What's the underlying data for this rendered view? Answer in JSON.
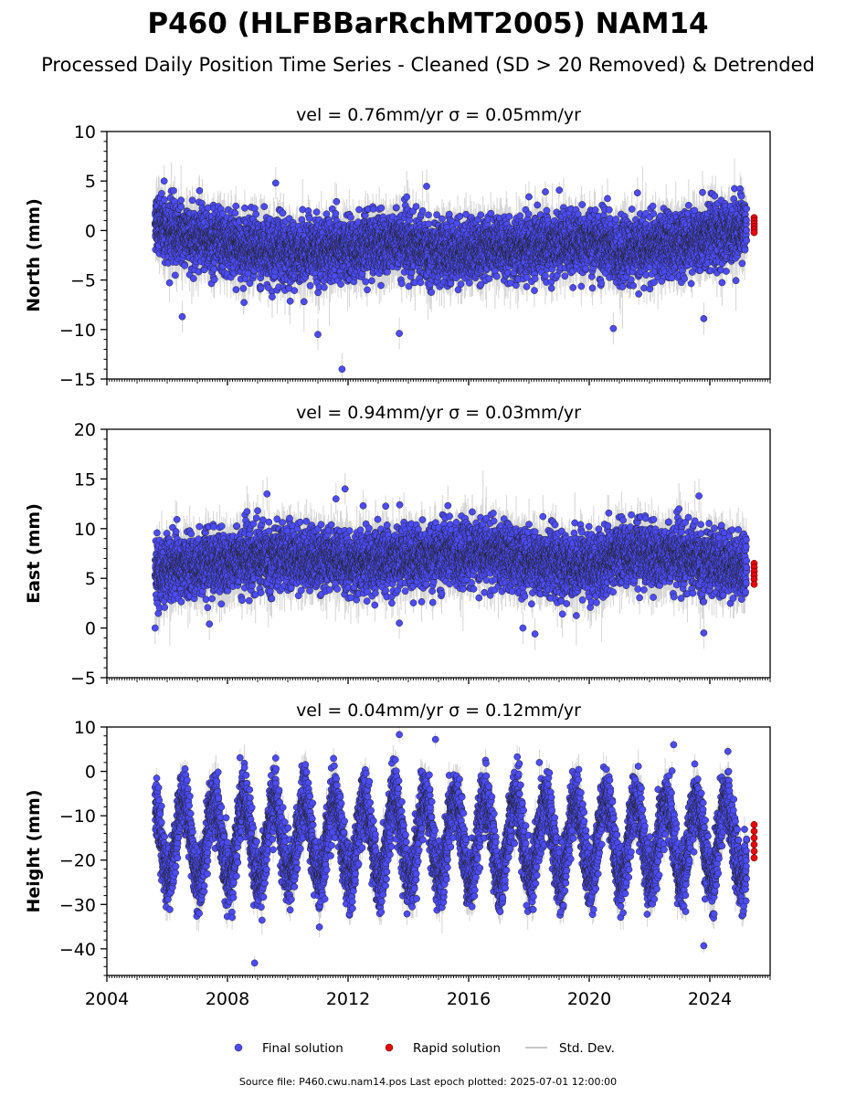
{
  "title": "P460 (HLFBBarRchMT2005) NAM14",
  "subtitle": "Processed Daily Position Time Series - Cleaned (SD > 20 Removed) & Detrended",
  "footer": "Source file: P460.cwu.nam14.pos  Last epoch plotted: 2025-07-01 12:00:00",
  "colors": {
    "final": "#4b4bff",
    "rapid": "#ee0000",
    "stddev": "#b4b4b4",
    "edge": "#222222"
  },
  "chart_data": [
    {
      "type": "scatter",
      "panel": "north",
      "title": "vel = 0.76mm/yr   σ = 0.05mm/yr",
      "ylabel": "North (mm)",
      "xlim": [
        2004.0,
        2026.0
      ],
      "ylim": [
        -15,
        10
      ],
      "yticks": [
        -15,
        -10,
        -5,
        0,
        5,
        10
      ],
      "ytick_labels": [
        "−15",
        "−10",
        "−5",
        "0",
        "5",
        "10"
      ],
      "trend": [
        [
          2005.6,
          1.2
        ],
        [
          2006.0,
          0.0
        ],
        [
          2007.5,
          -1.0
        ],
        [
          2009.5,
          -2.2
        ],
        [
          2012.0,
          -2.0
        ],
        [
          2013.5,
          -1.0
        ],
        [
          2015.0,
          -2.3
        ],
        [
          2018.0,
          -1.6
        ],
        [
          2020.0,
          -1.0
        ],
        [
          2021.0,
          -2.2
        ],
        [
          2023.0,
          -1.2
        ],
        [
          2025.3,
          0.3
        ]
      ],
      "spread": 1.5,
      "outliers": [
        [
          2009.6,
          4.8
        ],
        [
          2011.8,
          -14.0
        ],
        [
          2011.0,
          -10.5
        ],
        [
          2013.7,
          -10.4
        ],
        [
          2020.8,
          -9.9
        ],
        [
          2023.8,
          -8.9
        ],
        [
          2006.5,
          -8.7
        ],
        [
          2018.0,
          3.4
        ],
        [
          2021.6,
          3.8
        ],
        [
          2005.9,
          5.0
        ]
      ],
      "final_series": {
        "x_start": 2005.6,
        "x_end": 2025.22
      },
      "rapid_series": {
        "x": 2025.47,
        "values": [
          1.3,
          1.0,
          0.7,
          0.4,
          0.1,
          -0.2
        ]
      }
    },
    {
      "type": "scatter",
      "panel": "east",
      "title": "vel = 0.94mm/yr   σ = 0.03mm/yr",
      "ylabel": "East (mm)",
      "xlim": [
        2004.0,
        2026.0
      ],
      "ylim": [
        -5,
        20
      ],
      "yticks": [
        -5,
        0,
        5,
        10,
        15,
        20
      ],
      "ytick_labels": [
        "−5",
        "0",
        "5",
        "10",
        "15",
        "20"
      ],
      "trend": [
        [
          2005.6,
          5.6
        ],
        [
          2008.0,
          6.8
        ],
        [
          2010.0,
          7.2
        ],
        [
          2012.0,
          6.6
        ],
        [
          2014.0,
          7.1
        ],
        [
          2016.5,
          7.6
        ],
        [
          2019.0,
          6.4
        ],
        [
          2020.5,
          6.2
        ],
        [
          2021.0,
          7.6
        ],
        [
          2023.0,
          7.2
        ],
        [
          2025.3,
          6.0
        ]
      ],
      "spread": 1.5,
      "outliers": [
        [
          2011.9,
          14.0
        ],
        [
          2011.6,
          13.0
        ],
        [
          2012.5,
          12.3
        ],
        [
          2009.0,
          11.8
        ],
        [
          2005.6,
          0.0
        ],
        [
          2007.4,
          0.4
        ],
        [
          2013.7,
          0.5
        ],
        [
          2018.2,
          -0.6
        ],
        [
          2017.8,
          0.0
        ],
        [
          2023.8,
          -0.5
        ]
      ],
      "final_series": {
        "x_start": 2005.6,
        "x_end": 2025.22
      },
      "rapid_series": {
        "x": 2025.47,
        "values": [
          6.5,
          6.1,
          5.7,
          5.3,
          4.9,
          4.4
        ]
      }
    },
    {
      "type": "scatter",
      "panel": "height",
      "title": "vel = 0.04mm/yr   σ = 0.12mm/yr",
      "ylabel": "Height (mm)",
      "xlim": [
        2004.0,
        2026.0
      ],
      "ylim": [
        -46,
        10
      ],
      "yticks": [
        -40,
        -30,
        -20,
        -10,
        0,
        10
      ],
      "ytick_labels": [
        "−40",
        "−30",
        "−20",
        "−10",
        "0",
        "10"
      ],
      "trend": [
        [
          2005.6,
          -15.5
        ],
        [
          2025.3,
          -15.5
        ]
      ],
      "seasonal_amplitude": 9,
      "spread": 3.5,
      "outliers": [
        [
          2008.9,
          -43.2
        ],
        [
          2013.7,
          8.3
        ],
        [
          2014.9,
          7.2
        ],
        [
          2023.8,
          -39.3
        ],
        [
          2022.8,
          6.0
        ],
        [
          2024.6,
          4.5
        ],
        [
          2009.6,
          3.0
        ]
      ],
      "final_series": {
        "x_start": 2005.6,
        "x_end": 2025.22
      },
      "rapid_series": {
        "x": 2025.47,
        "values": [
          -12,
          -13.5,
          -15,
          -16.5,
          -18,
          -19.5
        ]
      }
    }
  ],
  "xaxis": {
    "major_ticks": [
      2004,
      2008,
      2012,
      2016,
      2020,
      2024
    ],
    "tick_labels": [
      "2004",
      "2008",
      "2012",
      "2016",
      "2020",
      "2024"
    ]
  },
  "legend": {
    "items": [
      {
        "label": "Final solution",
        "kind": "final"
      },
      {
        "label": "Rapid solution",
        "kind": "rapid"
      },
      {
        "label": "Std. Dev.",
        "kind": "stddev"
      }
    ]
  }
}
